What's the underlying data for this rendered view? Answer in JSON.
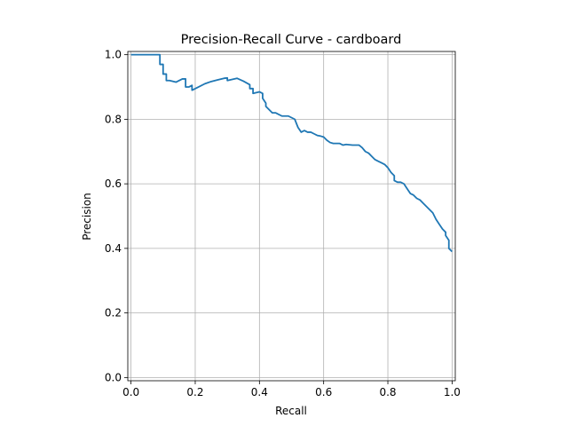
{
  "chart_data": {
    "type": "line",
    "title": "Precision-Recall Curve - cardboard",
    "xlabel": "Recall",
    "ylabel": "Precision",
    "xlim": [
      -0.01,
      1.01
    ],
    "ylim": [
      -0.01,
      1.01
    ],
    "xticks": [
      0.0,
      0.2,
      0.4,
      0.6,
      0.8,
      1.0
    ],
    "yticks": [
      0.0,
      0.2,
      0.4,
      0.6,
      0.8,
      1.0
    ],
    "xtick_labels": [
      "0.0",
      "0.2",
      "0.4",
      "0.6",
      "0.8",
      "1.0"
    ],
    "ytick_labels": [
      "0.0",
      "0.2",
      "0.4",
      "0.6",
      "0.8",
      "1.0"
    ],
    "grid": true,
    "line_color": "#1f77b4",
    "series": [
      {
        "x": [
          0.0,
          0.09,
          0.09,
          0.1,
          0.1,
          0.11,
          0.11,
          0.12,
          0.12,
          0.14,
          0.14,
          0.16,
          0.17,
          0.17,
          0.18,
          0.19,
          0.19,
          0.21,
          0.23,
          0.25,
          0.27,
          0.29,
          0.3,
          0.3,
          0.33,
          0.33,
          0.35,
          0.37,
          0.37,
          0.38,
          0.38,
          0.4,
          0.41,
          0.41,
          0.42,
          0.42,
          0.43,
          0.44,
          0.45,
          0.46,
          0.47,
          0.49,
          0.51,
          0.52,
          0.53,
          0.54,
          0.55,
          0.56,
          0.57,
          0.58,
          0.59,
          0.6,
          0.61,
          0.62,
          0.63,
          0.65,
          0.66,
          0.67,
          0.69,
          0.71,
          0.72,
          0.73,
          0.74,
          0.75,
          0.76,
          0.77,
          0.78,
          0.79,
          0.8,
          0.81,
          0.82,
          0.82,
          0.83,
          0.84,
          0.85,
          0.86,
          0.87,
          0.88,
          0.89,
          0.9,
          0.91,
          0.92,
          0.93,
          0.94,
          0.95,
          0.96,
          0.97,
          0.98,
          0.98,
          0.99,
          0.99,
          1.0
        ],
        "y": [
          1.0,
          1.0,
          0.97,
          0.97,
          0.94,
          0.94,
          0.92,
          0.92,
          0.92,
          0.915,
          0.915,
          0.925,
          0.925,
          0.9,
          0.9,
          0.905,
          0.89,
          0.9,
          0.91,
          0.917,
          0.922,
          0.927,
          0.928,
          0.92,
          0.927,
          0.927,
          0.918,
          0.907,
          0.895,
          0.895,
          0.88,
          0.885,
          0.88,
          0.865,
          0.85,
          0.84,
          0.83,
          0.82,
          0.82,
          0.815,
          0.81,
          0.81,
          0.8,
          0.775,
          0.76,
          0.765,
          0.76,
          0.76,
          0.755,
          0.75,
          0.748,
          0.745,
          0.735,
          0.728,
          0.725,
          0.725,
          0.72,
          0.722,
          0.72,
          0.72,
          0.712,
          0.7,
          0.695,
          0.685,
          0.675,
          0.67,
          0.665,
          0.66,
          0.65,
          0.635,
          0.625,
          0.61,
          0.605,
          0.605,
          0.6,
          0.585,
          0.57,
          0.565,
          0.555,
          0.55,
          0.54,
          0.53,
          0.52,
          0.51,
          0.49,
          0.475,
          0.46,
          0.45,
          0.44,
          0.425,
          0.4,
          0.39
        ]
      }
    ]
  }
}
